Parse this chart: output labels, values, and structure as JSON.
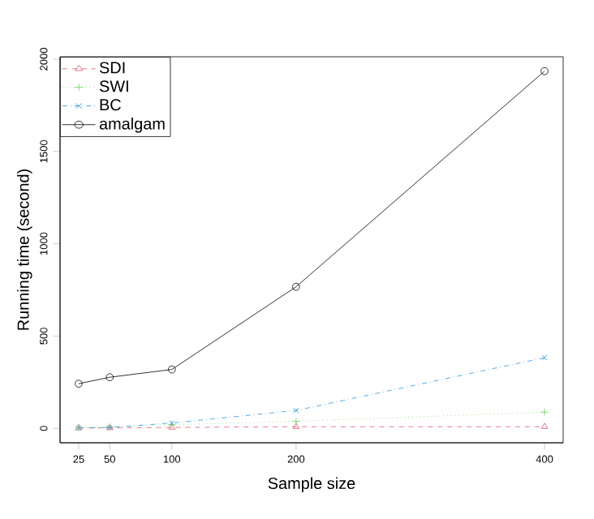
{
  "chart_data": {
    "type": "line",
    "xlabel": "Sample size",
    "ylabel": "Running time (second)",
    "x": [
      25,
      50,
      100,
      200,
      400
    ],
    "xlim": [
      10,
      415
    ],
    "ylim": [
      -78,
      2013
    ],
    "xticks": [
      25,
      50,
      100,
      200,
      400
    ],
    "yticks": [
      0,
      500,
      1000,
      1500,
      2000
    ],
    "legend": "top left",
    "grid": false,
    "series": [
      {
        "name": "SDI",
        "color": "#df536b",
        "marker": "triangle",
        "line_style": "dashed",
        "values": [
          2,
          3,
          5,
          9,
          9
        ]
      },
      {
        "name": "SWI",
        "color": "#61d04f",
        "marker": "plus",
        "line_style": "dotted",
        "values": [
          5,
          8,
          20,
          38,
          88
        ]
      },
      {
        "name": "BC",
        "color": "#2297e6",
        "marker": "cross",
        "line_style": "dashdot",
        "values": [
          3,
          5,
          29,
          97,
          383
        ]
      },
      {
        "name": "amalgam",
        "color": "#000000",
        "marker": "circle",
        "line_style": "solid",
        "values": [
          242,
          277,
          319,
          767,
          1935
        ]
      }
    ]
  }
}
